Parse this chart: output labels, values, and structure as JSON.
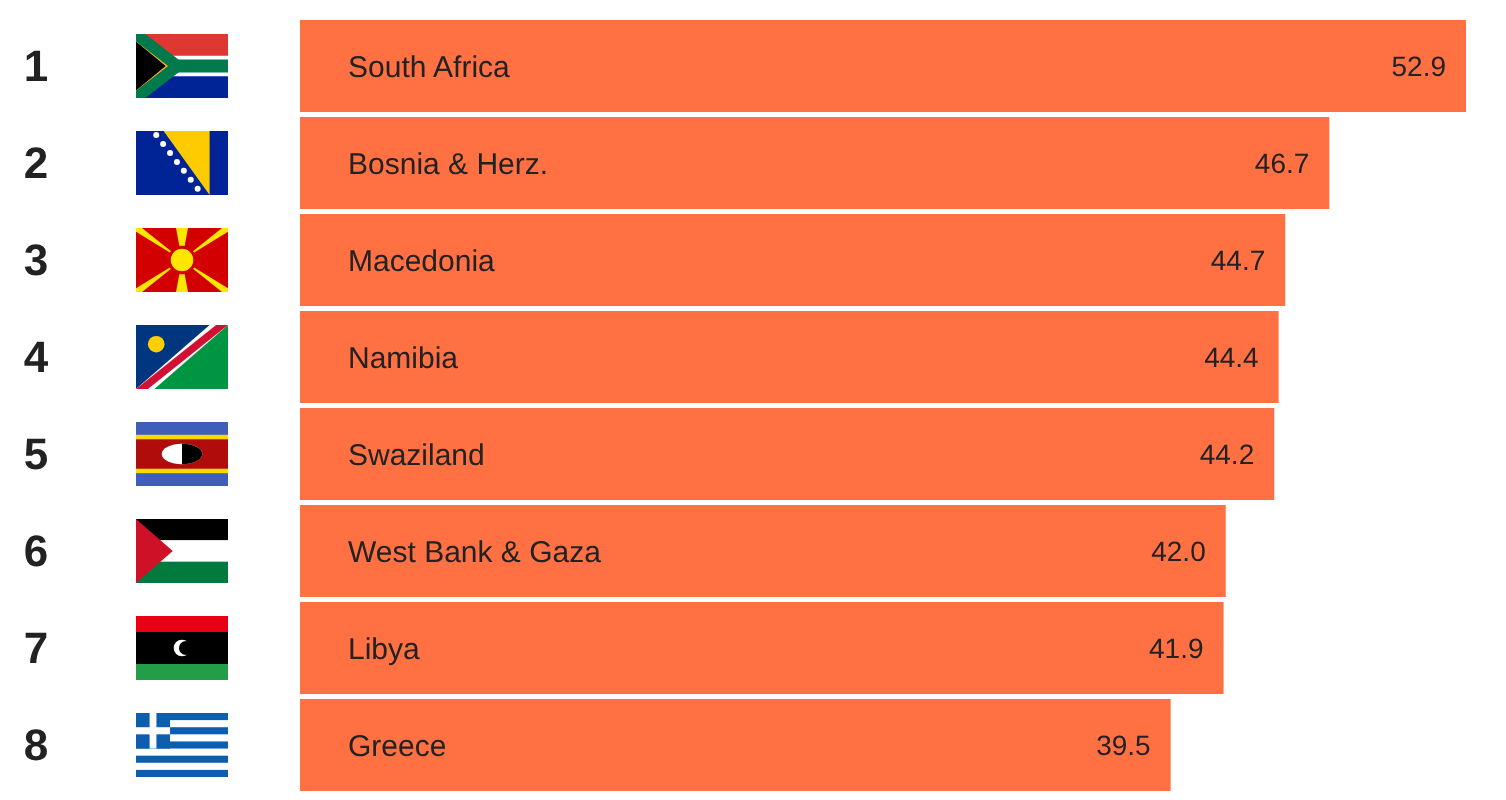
{
  "chart_data": {
    "type": "bar",
    "orientation": "horizontal",
    "value_labels": [
      "52.9",
      "46.7",
      "44.7",
      "44.4",
      "44.2",
      "42.0",
      "41.9",
      "39.5"
    ],
    "categories": [
      "South Africa",
      "Bosnia & Herz.",
      "Macedonia",
      "Namibia",
      "Swaziland",
      "West Bank & Gaza",
      "Libya",
      "Greece"
    ],
    "values": [
      52.9,
      46.7,
      44.7,
      44.4,
      44.2,
      42.0,
      41.9,
      39.5
    ],
    "color": "#ff7043",
    "annotations": [
      "1",
      "2",
      "3",
      "4",
      "5",
      "6",
      "7",
      "8"
    ]
  }
}
